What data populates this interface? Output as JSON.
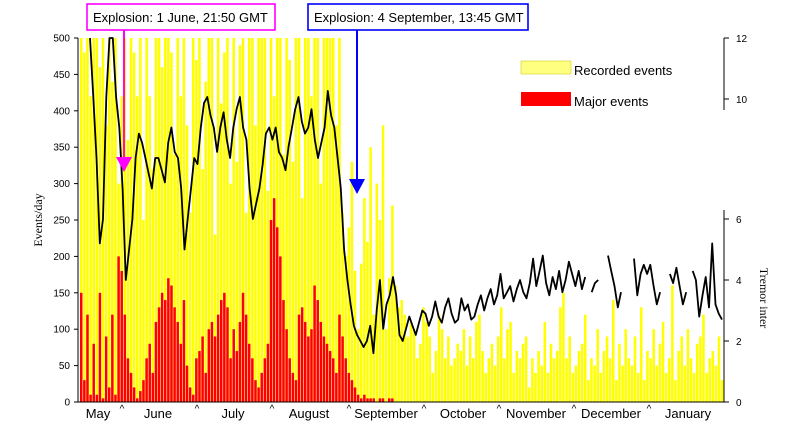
{
  "chart_data": {
    "type": "bar",
    "xlabel": "",
    "ylabel": "Events/day",
    "ylabel_right": "Tremor inter",
    "ylim": [
      0,
      500
    ],
    "yticks": [
      0,
      50,
      100,
      150,
      200,
      250,
      300,
      350,
      400,
      450,
      500
    ],
    "right_upper_ticks": [
      "12",
      "10"
    ],
    "right_lower_ticks": [
      "6",
      "4",
      "2",
      "0"
    ],
    "months": [
      "May",
      "June",
      "July",
      "August",
      "September",
      "October",
      "November",
      "December",
      "January"
    ],
    "month_marker": "^",
    "legend": {
      "placement": "top-right",
      "entries": [
        {
          "label": "Recorded events",
          "color": "#ffff00"
        },
        {
          "label": "Major events",
          "color": "#ff0000"
        }
      ]
    },
    "annotations": [
      {
        "text": "Explosion: 1 June, 21:50 GMT",
        "color": "#ff00ff",
        "date": "1 June"
      },
      {
        "text": "Explosion: 4 September, 13:45 GMT",
        "color": "#0000ff",
        "date": "4 September"
      }
    ],
    "series": [
      {
        "name": "Recorded events",
        "color": "#ffff00",
        "values": [
          500,
          480,
          500,
          420,
          500,
          500,
          460,
          500,
          380,
          500,
          440,
          500,
          300,
          420,
          500,
          360,
          500,
          480,
          420,
          500,
          250,
          500,
          420,
          320,
          500,
          500,
          460,
          500,
          500,
          480,
          340,
          500,
          420,
          500,
          380,
          260,
          500,
          470,
          500,
          320,
          440,
          500,
          500,
          230,
          500,
          410,
          480,
          500,
          300,
          500,
          330,
          490,
          500,
          260,
          500,
          500,
          380,
          500,
          500,
          500,
          290,
          500,
          420,
          500,
          500,
          340,
          500,
          470,
          330,
          500,
          500,
          280,
          500,
          500,
          420,
          500,
          500,
          300,
          500,
          500,
          500,
          500,
          380,
          500,
          260,
          200,
          240,
          330,
          180,
          100,
          190,
          280,
          220,
          350,
          120,
          300,
          250,
          380,
          100,
          170,
          270,
          160,
          130,
          140,
          120,
          90,
          110,
          100,
          60,
          80,
          130,
          110,
          90,
          40,
          70,
          120,
          100,
          60,
          90,
          50,
          60,
          80,
          70,
          100,
          50,
          90,
          60,
          110,
          120,
          70,
          40,
          60,
          80,
          50,
          90,
          130,
          60,
          100,
          110,
          40,
          70,
          60,
          80,
          90,
          20,
          60,
          40,
          70,
          50,
          110,
          40,
          80,
          60,
          70,
          130,
          150,
          60,
          90,
          40,
          50,
          70,
          80,
          120,
          30,
          60,
          50,
          100,
          40,
          70,
          90,
          60,
          140,
          30,
          80,
          50,
          100,
          60,
          50,
          90,
          40,
          130,
          30,
          70,
          60,
          100,
          50,
          80,
          110,
          40,
          60,
          160,
          30,
          70,
          90,
          50,
          100,
          60,
          40,
          80,
          90,
          120,
          40,
          60,
          70,
          50,
          90,
          30
        ]
      },
      {
        "name": "Major events",
        "color": "#ff0000",
        "values": [
          150,
          30,
          120,
          10,
          80,
          10,
          150,
          5,
          90,
          20,
          120,
          10,
          200,
          180,
          120,
          60,
          40,
          20,
          5,
          15,
          30,
          60,
          80,
          40,
          110,
          130,
          150,
          140,
          170,
          160,
          130,
          110,
          80,
          140,
          50,
          20,
          10,
          60,
          70,
          90,
          40,
          100,
          110,
          90,
          120,
          140,
          150,
          130,
          60,
          100,
          70,
          110,
          150,
          120,
          80,
          60,
          30,
          20,
          40,
          60,
          80,
          250,
          280,
          240,
          200,
          140,
          100,
          60,
          40,
          30,
          120,
          130,
          110,
          90,
          100,
          160,
          140,
          110,
          90,
          80,
          70,
          60,
          40,
          120,
          90,
          60,
          40,
          30,
          20,
          10,
          5,
          10,
          5,
          5,
          5,
          0,
          5,
          5,
          0,
          5,
          5,
          0,
          0,
          0,
          0,
          0,
          0,
          0,
          0,
          0,
          0,
          0,
          0,
          0,
          0,
          0,
          0,
          0,
          0,
          0,
          0,
          0,
          0,
          0,
          0,
          0,
          0,
          0,
          0,
          0,
          0,
          0,
          0,
          0,
          0,
          0,
          0,
          0,
          0,
          0,
          0,
          0,
          0,
          0,
          0,
          0,
          0,
          0,
          0,
          0,
          0,
          0,
          0,
          0,
          0,
          0,
          0,
          0,
          0,
          0,
          0,
          0,
          0,
          0,
          0,
          0,
          0,
          0,
          0,
          0,
          0,
          0,
          0,
          0,
          0,
          0,
          0,
          0,
          0,
          0,
          0,
          0,
          0,
          0,
          0,
          0,
          0,
          0,
          0,
          0,
          0,
          0,
          0,
          0,
          0,
          0,
          0,
          0,
          0,
          0,
          0,
          0,
          0,
          0
        ]
      }
    ],
    "tremor_line": {
      "color": "#000000",
      "values": [
        12,
        10,
        8,
        5.2,
        6,
        10,
        12,
        12,
        10,
        9,
        7,
        4,
        5,
        6,
        8,
        8.8,
        8.5,
        8,
        7.5,
        7,
        8,
        8,
        7.6,
        7.2,
        8.5,
        9,
        8.2,
        8,
        7,
        5,
        6,
        7,
        8,
        7.8,
        9,
        9.8,
        10,
        9.4,
        9,
        8.2,
        9,
        9.5,
        8.6,
        8,
        9,
        9.6,
        10,
        9,
        8.6,
        7,
        6,
        6.5,
        7,
        7.8,
        8.8,
        9,
        8.6,
        9,
        8.2,
        8,
        7.6,
        8.4,
        9,
        9.6,
        10,
        9.2,
        8.8,
        9,
        9.6,
        8.6,
        8,
        8.5,
        9,
        10.2,
        9.4,
        9,
        8,
        7,
        5,
        4,
        3.2,
        2.5,
        2.2,
        2,
        1.8,
        2,
        2.5,
        1.6,
        3,
        4,
        2.4,
        3.2,
        3.5,
        4.1,
        3.5,
        2.2,
        2,
        2.4,
        2.8,
        2.5,
        2.2,
        2.6,
        3,
        2.9,
        2.5,
        2.8,
        3.3,
        2.8,
        2.6,
        3.1,
        3.4,
        2.9,
        2.6,
        2.7,
        3.4,
        3,
        3.2,
        2.7,
        2.8,
        3.2,
        3.5,
        3,
        3.4,
        3.7,
        3.2,
        3.5,
        4.2,
        3.4,
        3.6,
        3.8,
        3.3,
        3.7,
        4,
        3.6,
        3.4,
        3.9,
        4.7,
        3.8,
        4.3,
        4.8,
        3.9,
        3.5,
        4.1,
        3.7,
        4.3,
        3.6,
        4,
        4.6,
        4.2,
        3.8,
        4.3,
        3.7,
        4.1,
        null,
        3.6,
        3.9,
        4,
        null,
        null,
        4.8,
        4.3,
        3.8,
        3.1,
        3.6,
        null,
        null,
        null,
        4.7,
        3.5,
        4.2,
        4.5,
        4.2,
        4.5,
        3.8,
        3.2,
        3.6,
        null,
        null,
        4.2,
        3.9,
        4.4,
        3.8,
        3.2,
        3.6,
        null,
        4.3,
        4,
        2.8,
        3.5,
        4.1,
        3.1,
        5.2,
        3.2,
        2.9,
        2.7
      ]
    }
  }
}
